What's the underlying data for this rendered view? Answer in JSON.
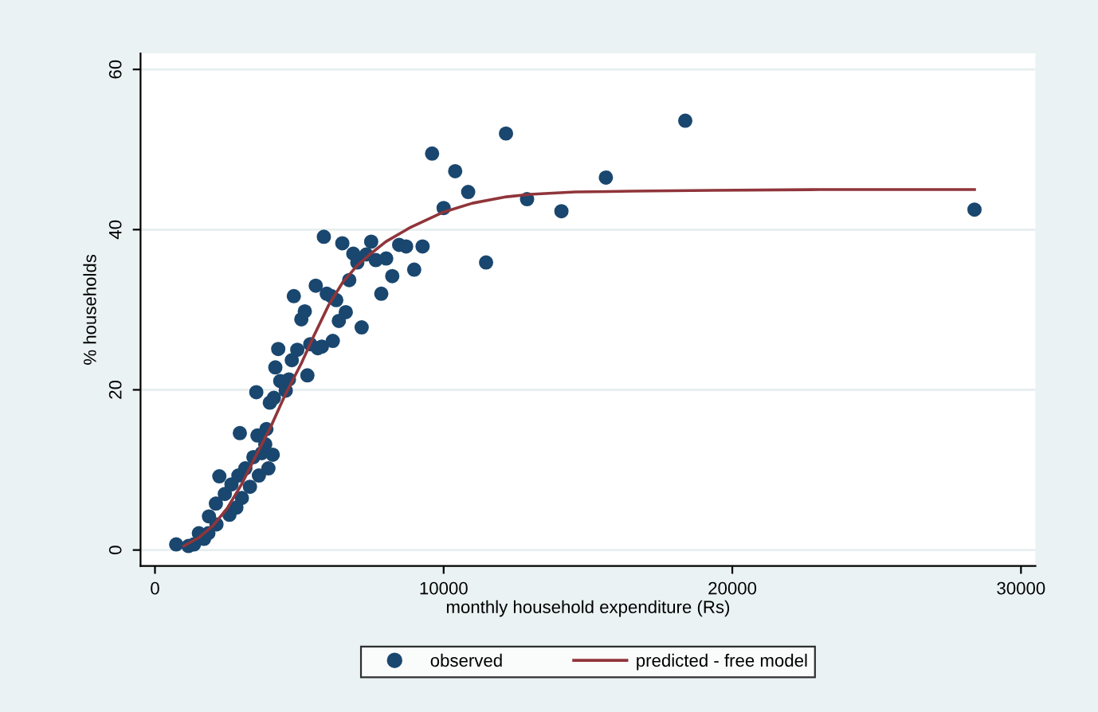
{
  "chart_data": {
    "type": "scatter",
    "xlabel": "monthly household expenditure (Rs)",
    "ylabel": "% households",
    "xlim": [
      -500,
      30500
    ],
    "ylim": [
      -2,
      62
    ],
    "xticks": [
      0,
      10000,
      20000,
      30000
    ],
    "yticks": [
      0,
      20,
      40,
      60
    ],
    "grid": "y",
    "legend": "bottom",
    "marker": "circle",
    "series": [
      {
        "name": "observed",
        "color": "#1a476f",
        "x": [
          735,
          1160,
          1350,
          1520,
          1700,
          1870,
          1850,
          2110,
          2130,
          2230,
          2420,
          2580,
          2650,
          2820,
          2890,
          2940,
          3010,
          3130,
          3290,
          3410,
          3510,
          3550,
          3600,
          3700,
          3820,
          3860,
          3930,
          3980,
          4080,
          4120,
          4170,
          4270,
          4340,
          4530,
          4640,
          4740,
          4810,
          4930,
          5070,
          5190,
          5280,
          5380,
          5570,
          5640,
          5780,
          5850,
          5950,
          6110,
          6160,
          6280,
          6370,
          6490,
          6610,
          6730,
          6870,
          7010,
          7160,
          7320,
          7490,
          7650,
          7840,
          8010,
          8220,
          8460,
          8700,
          8980,
          9270,
          9600,
          10000,
          10400,
          10850,
          11470,
          12160,
          12890,
          14080,
          15620,
          18370,
          28390
        ],
        "values": [
          0.7,
          0.5,
          0.7,
          2.1,
          1.4,
          4.2,
          2.1,
          5.8,
          3.2,
          9.2,
          7.0,
          4.4,
          8.2,
          5.3,
          9.3,
          14.6,
          6.5,
          10.2,
          7.9,
          11.6,
          19.7,
          14.3,
          9.3,
          12.1,
          13.2,
          15.1,
          10.2,
          18.4,
          11.9,
          19.0,
          22.8,
          25.1,
          21.1,
          19.9,
          21.3,
          23.7,
          31.7,
          25.0,
          28.8,
          29.8,
          21.8,
          25.7,
          33.0,
          25.2,
          25.4,
          39.1,
          32.0,
          31.7,
          26.1,
          31.2,
          28.6,
          38.3,
          29.7,
          33.7,
          37.0,
          35.9,
          27.8,
          36.9,
          38.5,
          36.2,
          32.0,
          36.4,
          34.2,
          38.1,
          37.9,
          35.0,
          37.9,
          49.5,
          42.7,
          47.3,
          44.7,
          35.9,
          52.0,
          43.8,
          42.3,
          46.5,
          53.6,
          42.5
        ]
      },
      {
        "name": "predicted - free model",
        "type": "line",
        "color": "#90353b",
        "marker": "none",
        "line_style": "solid",
        "x": [
          1000,
          1500,
          2000,
          2500,
          3000,
          3500,
          4000,
          4500,
          5070,
          5500,
          6020,
          6500,
          7000,
          7440,
          8000,
          8860,
          10000,
          11000,
          12180,
          13000,
          14550,
          16500,
          19290,
          23000,
          28390
        ],
        "values": [
          0.5,
          1.5,
          3.0,
          5.2,
          8.2,
          11.8,
          15.3,
          19.3,
          23.3,
          26.7,
          30.6,
          33.4,
          35.5,
          36.9,
          38.5,
          40.3,
          42.2,
          43.3,
          44.1,
          44.4,
          44.7,
          44.8,
          44.9,
          45.0,
          45.0
        ]
      }
    ]
  }
}
